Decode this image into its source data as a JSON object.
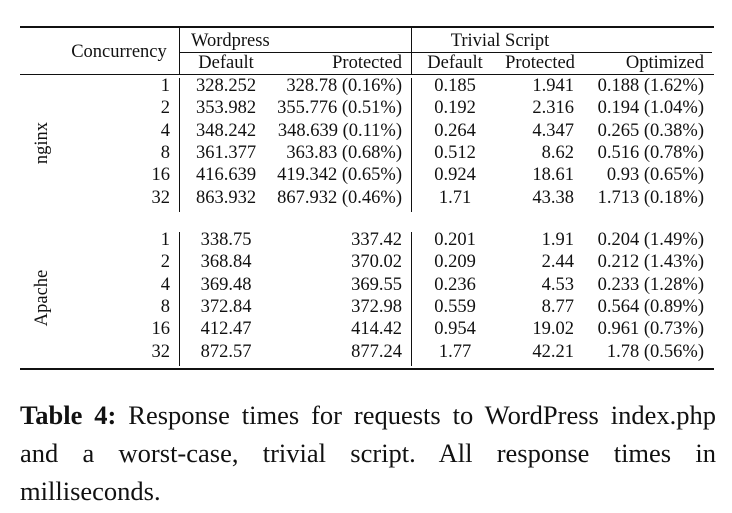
{
  "table": {
    "header": {
      "concurrency": "Concurrency",
      "wordpress": "Wordpress",
      "trivial": "Trivial Script",
      "sub": [
        "Default",
        "Protected",
        "Default",
        "Protected",
        "Optimized"
      ]
    },
    "groups": [
      {
        "label": "nginx",
        "rows": [
          [
            "1",
            "328.252",
            "328.78 (0.16%)",
            "0.185",
            "1.941",
            "0.188 (1.62%)"
          ],
          [
            "2",
            "353.982",
            "355.776 (0.51%)",
            "0.192",
            "2.316",
            "0.194 (1.04%)"
          ],
          [
            "4",
            "348.242",
            "348.639 (0.11%)",
            "0.264",
            "4.347",
            "0.265 (0.38%)"
          ],
          [
            "8",
            "361.377",
            "363.83 (0.68%)",
            "0.512",
            "8.62",
            "0.516 (0.78%)"
          ],
          [
            "16",
            "416.639",
            "419.342 (0.65%)",
            "0.924",
            "18.61",
            "0.93 (0.65%)"
          ],
          [
            "32",
            "863.932",
            "867.932 (0.46%)",
            "1.71",
            "43.38",
            "1.713 (0.18%)"
          ]
        ]
      },
      {
        "label": "Apache",
        "rows": [
          [
            "1",
            "338.75",
            "337.42",
            "0.201",
            "1.91",
            "0.204 (1.49%)"
          ],
          [
            "2",
            "368.84",
            "370.02",
            "0.209",
            "2.44",
            "0.212 (1.43%)"
          ],
          [
            "4",
            "369.48",
            "369.55",
            "0.236",
            "4.53",
            "0.233 (1.28%)"
          ],
          [
            "8",
            "372.84",
            "372.98",
            "0.559",
            "8.77",
            "0.564 (0.89%)"
          ],
          [
            "16",
            "412.47",
            "414.42",
            "0.954",
            "19.02",
            "0.961 (0.73%)"
          ],
          [
            "32",
            "872.57",
            "877.24",
            "1.77",
            "42.21",
            "1.78 (0.56%)"
          ]
        ]
      }
    ]
  },
  "caption": {
    "label": "Table 4:",
    "text": "Response times for requests to WordPress index.php and a worst-case, trivial script. All response times in milliseconds."
  }
}
